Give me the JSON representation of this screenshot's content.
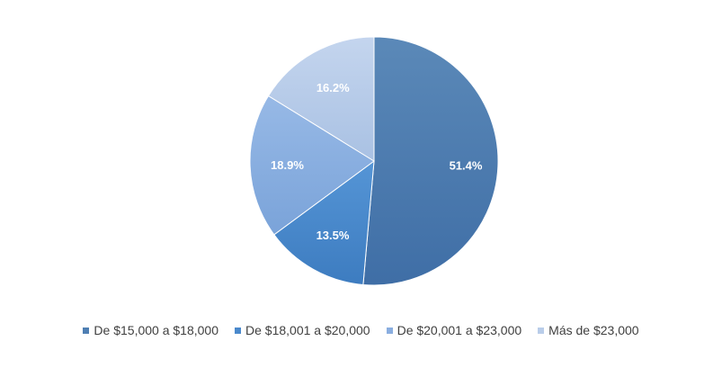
{
  "chart_data": {
    "type": "pie",
    "categories": [
      "De $15,000 a $18,000",
      "De $18,001 a $20,000",
      "De $20,001 a $23,000",
      "Más de $23,000"
    ],
    "values": [
      51.4,
      13.5,
      18.9,
      16.2
    ],
    "value_labels": [
      "51.4%",
      "13.5%",
      "18.9%",
      "16.2%"
    ],
    "colors": [
      "#4f7fb3",
      "#4a89cc",
      "#8aaee0",
      "#b9cde9"
    ],
    "start_angle_deg": 0,
    "direction": "clockwise",
    "legend_position": "bottom",
    "title": ""
  }
}
